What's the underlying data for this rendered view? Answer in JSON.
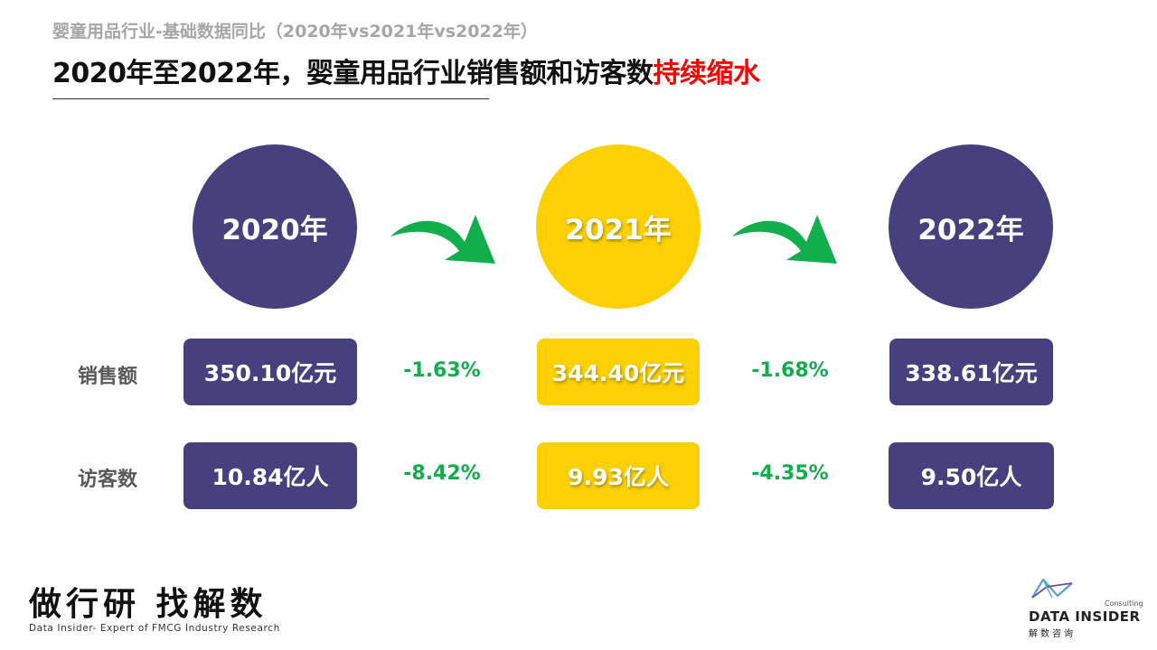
{
  "header": {
    "subtitle": "婴童用品行业-基础数据同比（2020年vs2021年vs2022年）",
    "title_main": "2020年至2022年，婴童用品行业销售额和访客数",
    "title_highlight": "持续缩水"
  },
  "colors": {
    "navy": "#46407f",
    "yellow": "#fcd005",
    "green": "#12ad4c",
    "highlight_red": "#ff0000"
  },
  "years": [
    {
      "label": "2020年",
      "color": "navy"
    },
    {
      "label": "2021年",
      "color": "yellow"
    },
    {
      "label": "2022年",
      "color": "navy"
    }
  ],
  "rows": [
    {
      "label": "销售额",
      "values": [
        "350.10亿元",
        "344.40亿元",
        "338.61亿元"
      ],
      "changes": [
        "-1.63%",
        "-1.68%"
      ]
    },
    {
      "label": "访客数",
      "values": [
        "10.84亿人",
        "9.93亿人",
        "9.50亿人"
      ],
      "changes": [
        "-8.42%",
        "-4.35%"
      ]
    }
  ],
  "footer": {
    "slogan": "做行研 找解数",
    "slogan_sub": "Data Insider- Expert of FMCG Industry Research",
    "logo_consulting": "Consulting",
    "logo_name": "DATA INSIDER",
    "logo_cn": "解数咨询"
  },
  "icons": {
    "arrow": "curved-right-arrow-icon",
    "logo": "data-insider-logo-icon"
  }
}
